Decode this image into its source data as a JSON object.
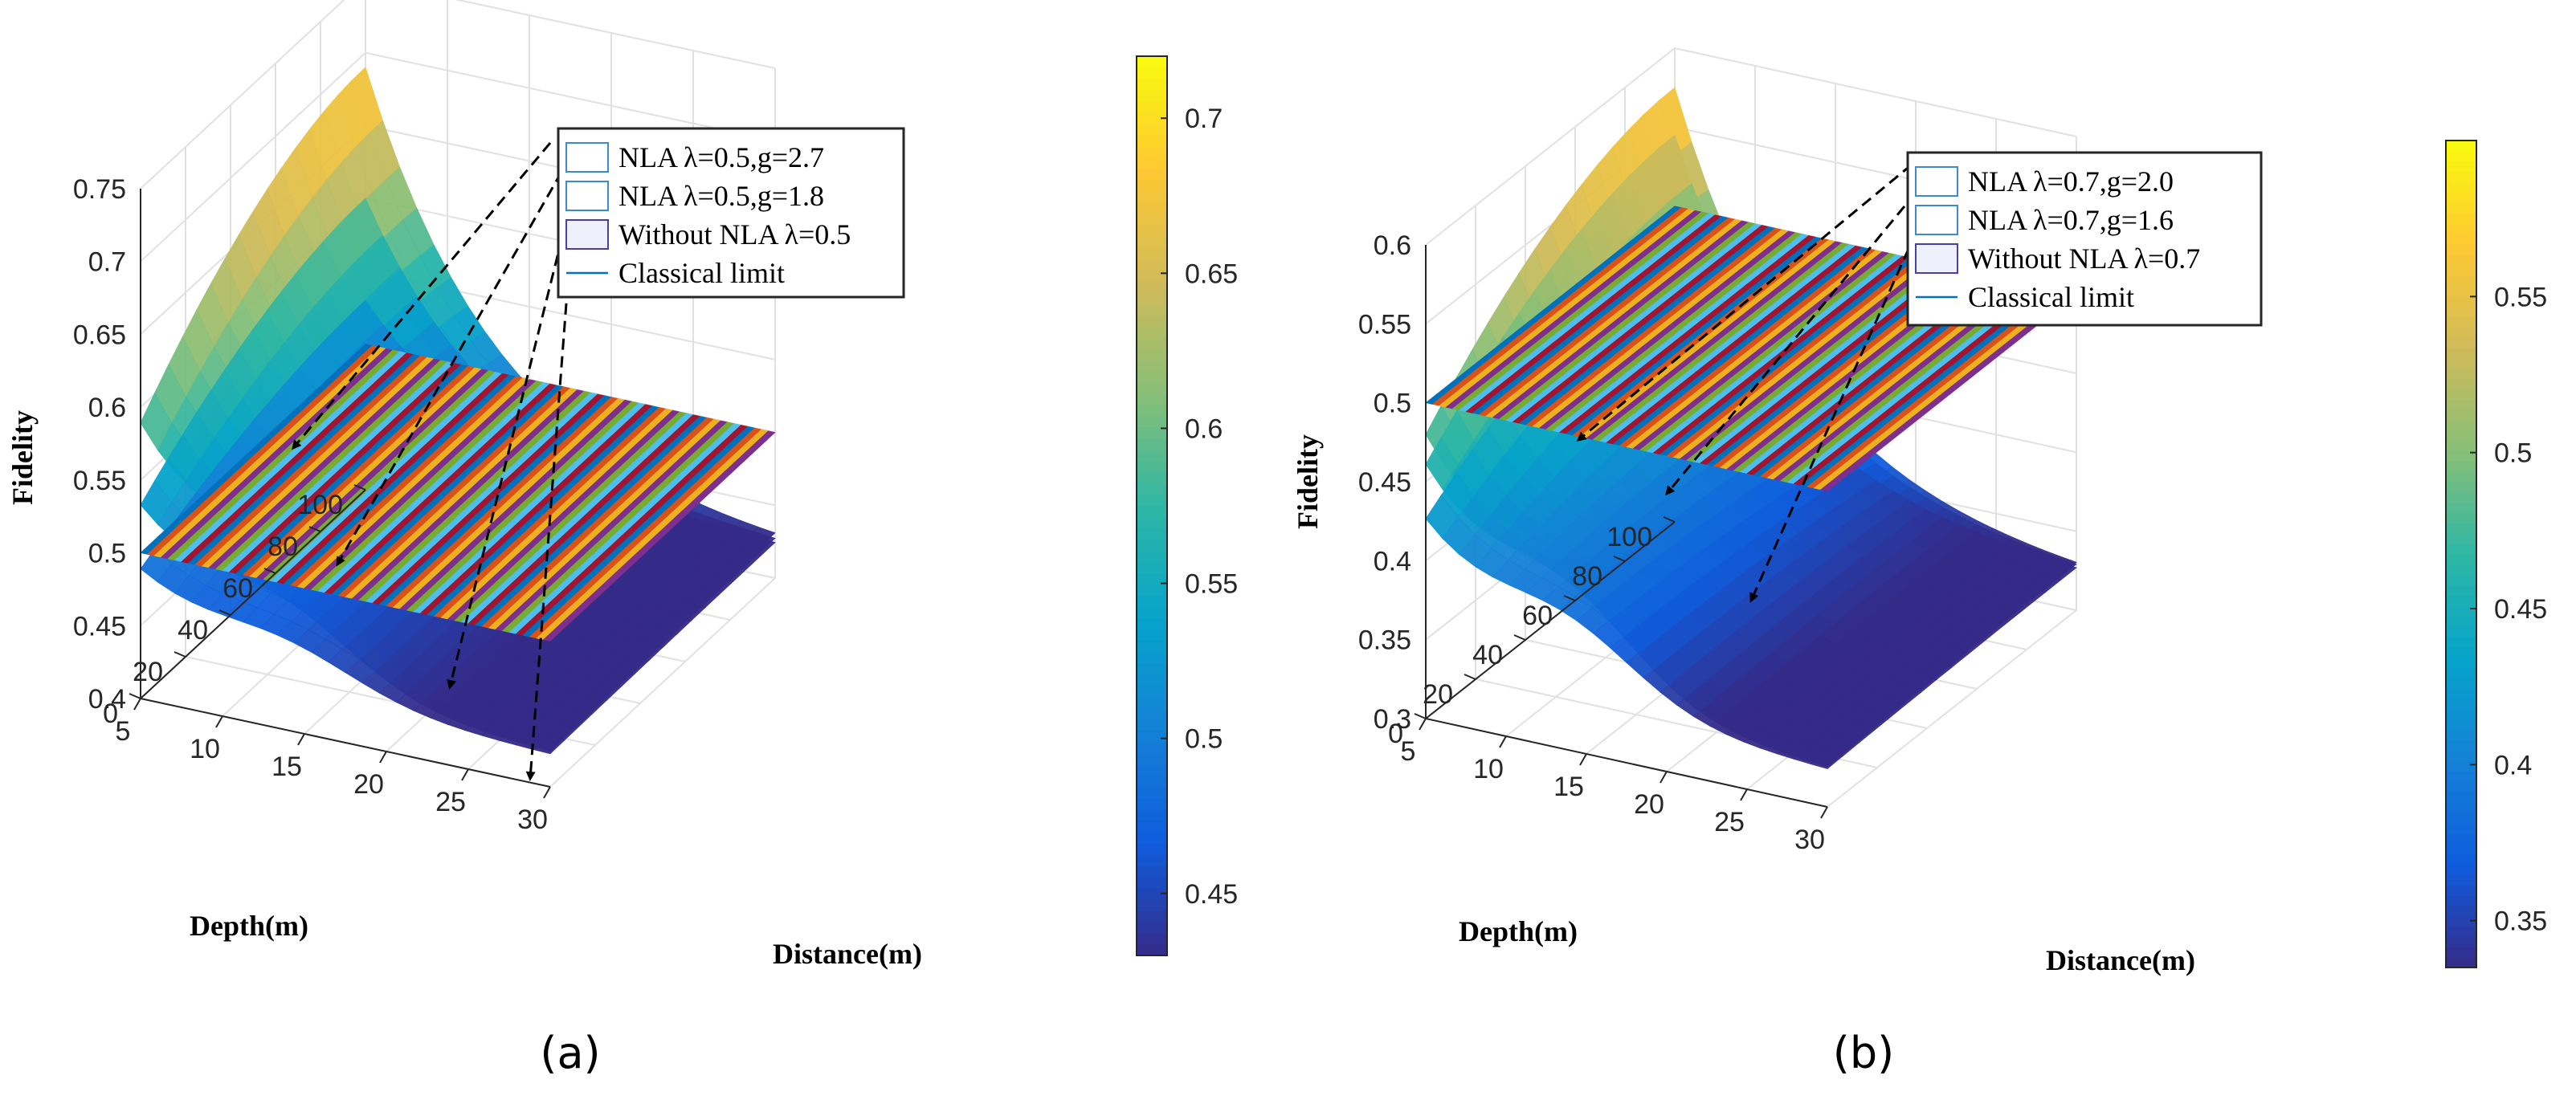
{
  "chart_data": [
    {
      "type": "surface3d",
      "panel": "a",
      "caption": "(a)",
      "zlabel": "Fidelity",
      "xlabel": "Distance(m)",
      "ylabel": "Depth(m)",
      "xlim": [
        5,
        30
      ],
      "ylim": [
        0,
        100
      ],
      "zlim": [
        0.4,
        0.75
      ],
      "xticks": [
        5,
        10,
        15,
        20,
        25,
        30
      ],
      "yticks": [
        0,
        20,
        40,
        60,
        80,
        100
      ],
      "zticks": [
        0.4,
        0.45,
        0.5,
        0.55,
        0.6,
        0.65,
        0.7,
        0.75
      ],
      "series": [
        {
          "name": "NLA λ=0.5,g=2.7",
          "legend_label": "NLA λ=0.5,g=2.7",
          "max_fidelity": 0.69,
          "min_fidelity": 0.42
        },
        {
          "name": "NLA λ=0.5,g=1.8",
          "legend_label": "NLA λ=0.5,g=1.8",
          "max_fidelity": 0.6,
          "min_fidelity": 0.42
        },
        {
          "name": "Without NLA λ=0.5",
          "legend_label": "Without NLA λ=0.5",
          "max_fidelity": 0.53,
          "min_fidelity": 0.42
        },
        {
          "name": "Classical limit",
          "legend_label": "Classical limit",
          "value": 0.5
        }
      ],
      "colorbar": {
        "min": 0.43,
        "max": 0.72,
        "ticks": [
          0.45,
          0.5,
          0.55,
          0.6,
          0.65,
          0.7
        ]
      }
    },
    {
      "type": "surface3d",
      "panel": "b",
      "caption": "(b)",
      "zlabel": "Fidelity",
      "xlabel": "Distance(m)",
      "ylabel": "Depth(m)",
      "xlim": [
        5,
        30
      ],
      "ylim": [
        0,
        100
      ],
      "zlim": [
        0.3,
        0.6
      ],
      "xticks": [
        5,
        10,
        15,
        20,
        25,
        30
      ],
      "yticks": [
        0,
        20,
        40,
        60,
        80,
        100
      ],
      "zticks": [
        0.3,
        0.35,
        0.4,
        0.45,
        0.5,
        0.55,
        0.6
      ],
      "series": [
        {
          "name": "NLA λ=0.7,g=2.0",
          "legend_label": "NLA λ=0.7,g=2.0",
          "max_fidelity": 0.575,
          "min_fidelity": 0.32
        },
        {
          "name": "NLA λ=0.7,g=1.6",
          "legend_label": "NLA λ=0.7,g=1.6",
          "max_fidelity": 0.545,
          "min_fidelity": 0.32
        },
        {
          "name": "Without NLA λ=0.7",
          "legend_label": "Without NLA λ=0.7",
          "max_fidelity": 0.49,
          "min_fidelity": 0.32
        },
        {
          "name": "Classical limit",
          "legend_label": "Classical limit",
          "value": 0.5
        }
      ],
      "colorbar": {
        "min": 0.335,
        "max": 0.6,
        "ticks": [
          0.35,
          0.4,
          0.45,
          0.5,
          0.55
        ]
      }
    }
  ],
  "colors": {
    "parula": [
      "#352a87",
      "#0f5cdd",
      "#1481d6",
      "#06a4ca",
      "#2eb7a4",
      "#87bf77",
      "#d1bb59",
      "#fec832",
      "#f9fb0e"
    ],
    "classical_stripes": [
      "#0072bd",
      "#d95319",
      "#edb120",
      "#7e2f8e",
      "#77ac30",
      "#4dbeee",
      "#a2142f"
    ],
    "legend_line": "#0072bd"
  }
}
